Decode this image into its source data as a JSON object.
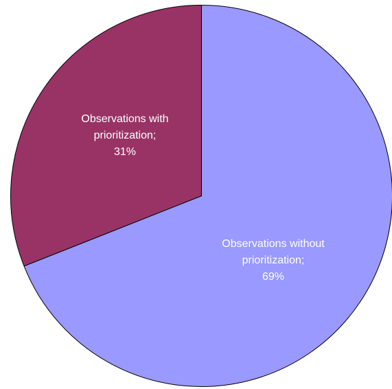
{
  "chart_data": {
    "type": "pie",
    "slices": [
      {
        "name": "Observations without prioritization",
        "value": 69,
        "label_lines": [
          "Observations without",
          "prioritization;",
          "69%"
        ],
        "color": "#9999ff"
      },
      {
        "name": "Observations with prioritization",
        "value": 31,
        "label_lines": [
          "Observations with",
          "prioritization;",
          "31%"
        ],
        "color": "#993366"
      }
    ],
    "start_angle": "12 o'clock",
    "direction": "clockwise",
    "legend": "none",
    "title": ""
  }
}
